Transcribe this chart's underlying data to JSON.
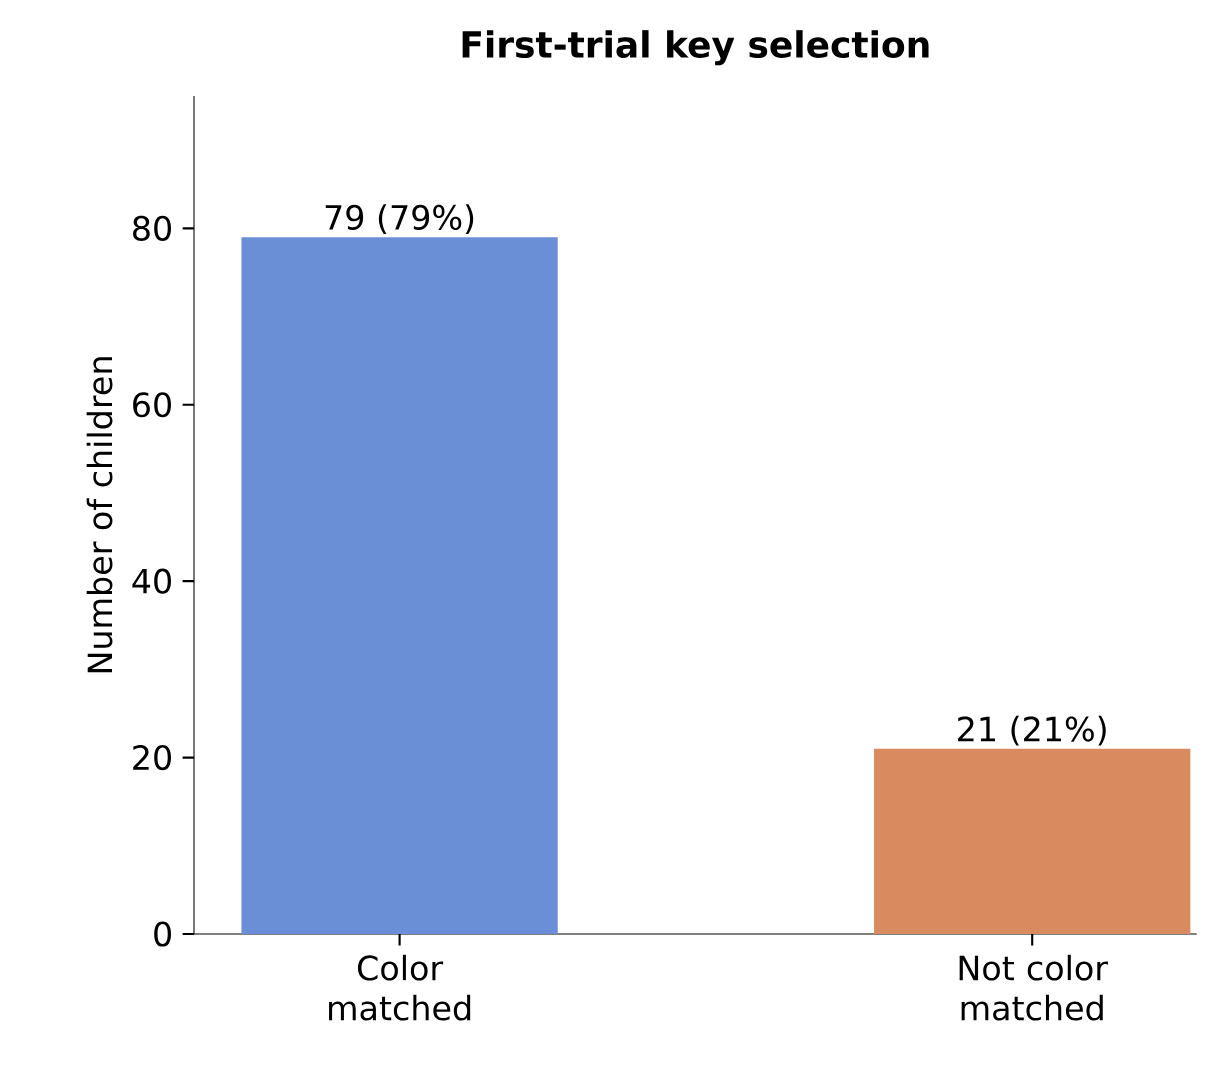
{
  "chart_data": {
    "type": "bar",
    "title": "First-trial key selection",
    "ylabel": "Number of children",
    "categories": [
      "Color matched",
      "Not color matched"
    ],
    "values": [
      79,
      21
    ],
    "colors": [
      "#6a8fd6",
      "#d98b5f"
    ],
    "value_labels": [
      "79  (79%)",
      "21  (21%)"
    ],
    "ylim": [
      0,
      95
    ],
    "yticks": [
      0,
      20,
      40,
      60,
      80
    ],
    "grid": false
  }
}
